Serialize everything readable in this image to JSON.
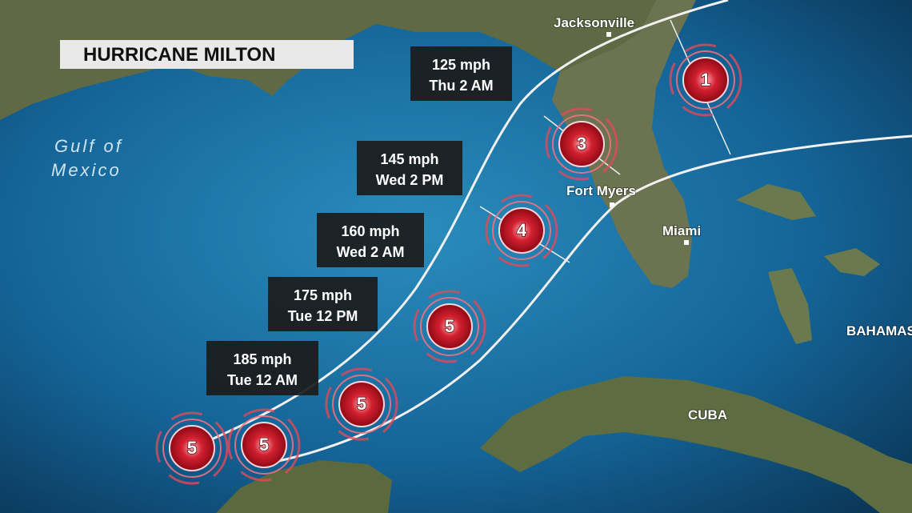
{
  "header": {
    "title": "HURRICANE MILTON"
  },
  "places": [
    {
      "label": "Jacksonville"
    },
    {
      "label": "Fort Myers"
    },
    {
      "label": "Miami"
    },
    {
      "label": "CUBA"
    },
    {
      "label": "BAHAMAS"
    }
  ],
  "gulf": {
    "lines": [
      "Gulf of",
      "Mexico"
    ]
  },
  "forecasts": [
    {
      "wind": "125 mph",
      "time": "Thu 2 AM"
    },
    {
      "wind": "145 mph",
      "time": "Wed 2 PM"
    },
    {
      "wind": "160 mph",
      "time": "Wed 2 AM"
    },
    {
      "wind": "175 mph",
      "time": "Tue 12 PM"
    },
    {
      "wind": "185 mph",
      "time": "Tue 12 AM"
    }
  ],
  "storms": [
    {
      "category": 5
    },
    {
      "category": 5
    },
    {
      "category": 5
    },
    {
      "category": 5
    },
    {
      "category": 4
    },
    {
      "category": 3
    },
    {
      "category": 1
    }
  ]
}
